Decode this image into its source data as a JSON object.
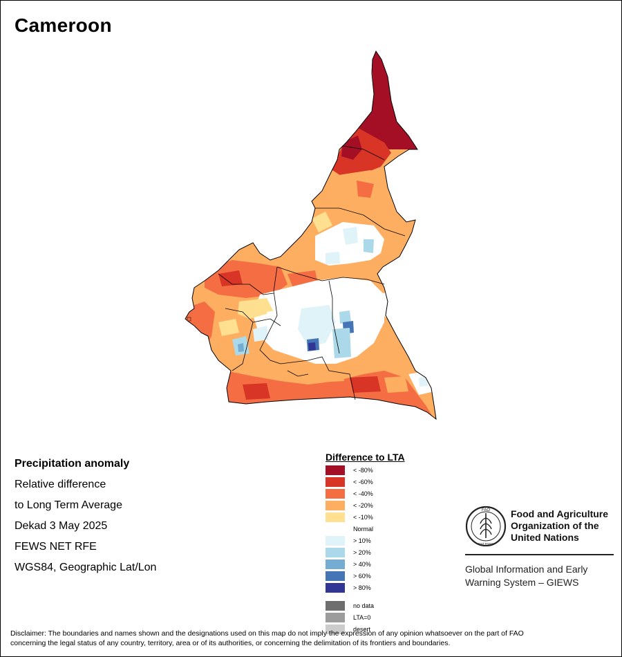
{
  "title": "Cameroon",
  "info": {
    "heading": "Precipitation anomaly",
    "line1": "Relative difference",
    "line2": "to Long Term Average",
    "line3": "Dekad 3 May 2025",
    "line4": "FEWS NET RFE",
    "line5": "WGS84, Geographic Lat/Lon"
  },
  "legend": {
    "title": "Difference to LTA",
    "classes": [
      {
        "label": "< -80%",
        "color": "#a50f26"
      },
      {
        "label": "< -60%",
        "color": "#d83527"
      },
      {
        "label": "< -40%",
        "color": "#f46d43"
      },
      {
        "label": "< -20%",
        "color": "#fdae61"
      },
      {
        "label": "< -10%",
        "color": "#fee090"
      },
      {
        "label": "Normal",
        "color": "#ffffff"
      },
      {
        "label": "> 10%",
        "color": "#e0f3f8"
      },
      {
        "label": "> 20%",
        "color": "#abd9e9"
      },
      {
        "label": "> 40%",
        "color": "#74add1"
      },
      {
        "label": "> 60%",
        "color": "#4575b4"
      },
      {
        "label": "> 80%",
        "color": "#313695"
      }
    ],
    "extra": [
      {
        "label": "no data",
        "color": "#6e6e6e"
      },
      {
        "label": "LTA=0",
        "color": "#9c9c9c"
      },
      {
        "label": "desert",
        "color": "#cccccc"
      }
    ]
  },
  "org": {
    "line1": "Food and Agriculture",
    "line2": "Organization of the",
    "line3": "United Nations",
    "logo_text": "FAO",
    "logo_motto": "FIAT PANIS",
    "giews_line1": "Global Information and Early",
    "giews_line2": "Warning System – GIEWS"
  },
  "disclaimer": {
    "line1": "Disclaimer: The boundaries and names shown and the designations used on this map do not imply the expression of any opinion whatsoever on the part of FAO",
    "line2": "concerning the legal status of any country, territory, area or of its authorities, or concerning the delimitation of its frontiers and boundaries."
  }
}
